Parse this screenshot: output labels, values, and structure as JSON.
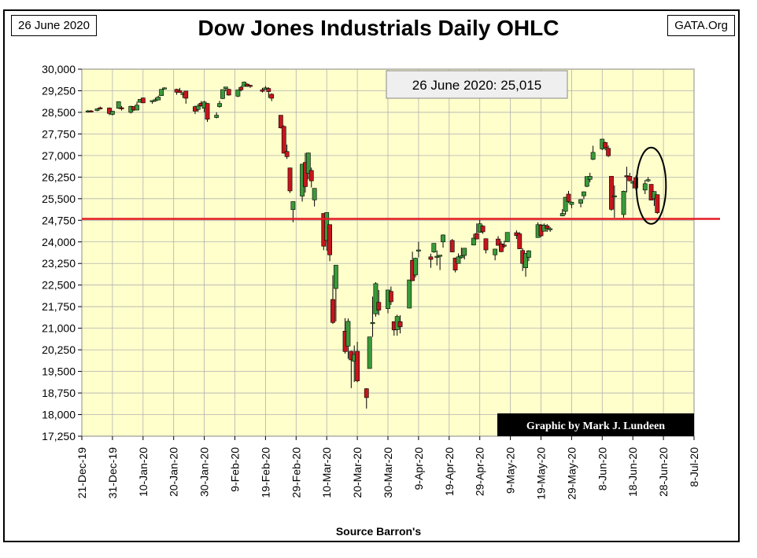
{
  "header": {
    "date_tag": "26 June 2020",
    "source_tag": "GATA.Org",
    "title": "Dow Jones Industrials Daily OHLC"
  },
  "annotations": {
    "close_box": "26 June 2020: 25,015",
    "credit": "Graphic by Mark J. Lundeen",
    "source": "Source Barron's"
  },
  "colors": {
    "plot_bg": "#ffffcc",
    "up": "#3a9a3a",
    "down": "#c4161c",
    "reference_line": "#e31b23"
  },
  "chart_data": {
    "type": "candlestick",
    "title": "Dow Jones Industrials Daily OHLC",
    "xlabel": "Source Barron's",
    "ylim": [
      17250,
      30000
    ],
    "y_ticks": [
      "30,000",
      "29,250",
      "28,500",
      "27,750",
      "27,000",
      "26,250",
      "25,500",
      "24,750",
      "24,000",
      "23,250",
      "22,500",
      "21,750",
      "21,000",
      "20,250",
      "19,500",
      "18,750",
      "18,000",
      "17,250"
    ],
    "x_ticks": [
      "21-Dec-19",
      "31-Dec-19",
      "10-Jan-20",
      "20-Jan-20",
      "30-Jan-20",
      "9-Feb-20",
      "19-Feb-20",
      "29-Feb-20",
      "10-Mar-20",
      "20-Mar-20",
      "30-Mar-20",
      "9-Apr-20",
      "19-Apr-20",
      "29-Apr-20",
      "9-May-20",
      "19-May-20",
      "29-May-20",
      "8-Jun-20",
      "18-Jun-20",
      "28-Jun-20",
      "8-Jul-20"
    ],
    "reference_line": 24800,
    "grid": true,
    "highlight_circle_dates": [
      "22-Jun-20",
      "26-Jun-20"
    ],
    "candles": [
      {
        "d": "23-Dec-19",
        "o": 28520,
        "h": 28580,
        "l": 28490,
        "c": 28550
      },
      {
        "d": "24-Dec-19",
        "o": 28550,
        "h": 28580,
        "l": 28520,
        "c": 28530
      },
      {
        "d": "26-Dec-19",
        "o": 28560,
        "h": 28640,
        "l": 28540,
        "c": 28620
      },
      {
        "d": "27-Dec-19",
        "o": 28660,
        "h": 28700,
        "l": 28600,
        "c": 28640
      },
      {
        "d": "30-Dec-19",
        "o": 28650,
        "h": 28670,
        "l": 28400,
        "c": 28460
      },
      {
        "d": "31-Dec-19",
        "o": 28430,
        "h": 28550,
        "l": 28390,
        "c": 28540
      },
      {
        "d": "2-Jan-20",
        "o": 28640,
        "h": 28880,
        "l": 28620,
        "c": 28870
      },
      {
        "d": "3-Jan-20",
        "o": 28660,
        "h": 28720,
        "l": 28560,
        "c": 28630
      },
      {
        "d": "6-Jan-20",
        "o": 28500,
        "h": 28730,
        "l": 28460,
        "c": 28710
      },
      {
        "d": "7-Jan-20",
        "o": 28700,
        "h": 28710,
        "l": 28550,
        "c": 28580
      },
      {
        "d": "8-Jan-20",
        "o": 28580,
        "h": 28870,
        "l": 28570,
        "c": 28750
      },
      {
        "d": "9-Jan-20",
        "o": 28850,
        "h": 28960,
        "l": 28840,
        "c": 28950
      },
      {
        "d": "10-Jan-20",
        "o": 29000,
        "h": 29010,
        "l": 28820,
        "c": 28830
      },
      {
        "d": "13-Jan-20",
        "o": 28870,
        "h": 28910,
        "l": 28800,
        "c": 28910
      },
      {
        "d": "14-Jan-20",
        "o": 28900,
        "h": 29010,
        "l": 28870,
        "c": 28940
      },
      {
        "d": "15-Jan-20",
        "o": 28930,
        "h": 29080,
        "l": 28920,
        "c": 29030
      },
      {
        "d": "16-Jan-20",
        "o": 29080,
        "h": 29300,
        "l": 29080,
        "c": 29300
      },
      {
        "d": "17-Jan-20",
        "o": 29310,
        "h": 29370,
        "l": 29290,
        "c": 29350
      },
      {
        "d": "21-Jan-20",
        "o": 29300,
        "h": 29320,
        "l": 29110,
        "c": 29200
      },
      {
        "d": "22-Jan-20",
        "o": 29250,
        "h": 29350,
        "l": 29180,
        "c": 29190
      },
      {
        "d": "23-Jan-20",
        "o": 29160,
        "h": 29200,
        "l": 29000,
        "c": 29160
      },
      {
        "d": "24-Jan-20",
        "o": 29240,
        "h": 29250,
        "l": 28800,
        "c": 28990
      },
      {
        "d": "27-Jan-20",
        "o": 28700,
        "h": 28730,
        "l": 28440,
        "c": 28540
      },
      {
        "d": "28-Jan-20",
        "o": 28600,
        "h": 28800,
        "l": 28520,
        "c": 28720
      },
      {
        "d": "29-Jan-20",
        "o": 28820,
        "h": 28890,
        "l": 28700,
        "c": 28730
      },
      {
        "d": "30-Jan-20",
        "o": 28640,
        "h": 28900,
        "l": 28500,
        "c": 28860
      },
      {
        "d": "31-Jan-20",
        "o": 28810,
        "h": 28820,
        "l": 28170,
        "c": 28260
      },
      {
        "d": "3-Feb-20",
        "o": 28320,
        "h": 28500,
        "l": 28290,
        "c": 28400
      },
      {
        "d": "4-Feb-20",
        "o": 28700,
        "h": 28900,
        "l": 28660,
        "c": 28810
      },
      {
        "d": "5-Feb-20",
        "o": 28980,
        "h": 29290,
        "l": 28960,
        "c": 29290
      },
      {
        "d": "6-Feb-20",
        "o": 29330,
        "h": 29380,
        "l": 29230,
        "c": 29380
      },
      {
        "d": "7-Feb-20",
        "o": 29300,
        "h": 29320,
        "l": 29080,
        "c": 29100
      },
      {
        "d": "10-Feb-20",
        "o": 29060,
        "h": 29280,
        "l": 29030,
        "c": 29280
      },
      {
        "d": "11-Feb-20",
        "o": 29370,
        "h": 29420,
        "l": 29230,
        "c": 29280
      },
      {
        "d": "12-Feb-20",
        "o": 29400,
        "h": 29570,
        "l": 29400,
        "c": 29550
      },
      {
        "d": "13-Feb-20",
        "o": 29480,
        "h": 29510,
        "l": 29380,
        "c": 29420
      },
      {
        "d": "14-Feb-20",
        "o": 29440,
        "h": 29460,
        "l": 29350,
        "c": 29400
      },
      {
        "d": "18-Feb-20",
        "o": 29280,
        "h": 29350,
        "l": 29190,
        "c": 29230
      },
      {
        "d": "19-Feb-20",
        "o": 29300,
        "h": 29410,
        "l": 29300,
        "c": 29350
      },
      {
        "d": "20-Feb-20",
        "o": 29330,
        "h": 29370,
        "l": 29000,
        "c": 29220
      },
      {
        "d": "21-Feb-20",
        "o": 29130,
        "h": 29160,
        "l": 28890,
        "c": 28990
      },
      {
        "d": "24-Feb-20",
        "o": 28400,
        "h": 28400,
        "l": 27940,
        "c": 27960
      },
      {
        "d": "25-Feb-20",
        "o": 28010,
        "h": 28050,
        "l": 27070,
        "c": 27080
      },
      {
        "d": "26-Feb-20",
        "o": 27140,
        "h": 27380,
        "l": 26880,
        "c": 26960
      },
      {
        "d": "27-Feb-20",
        "o": 26570,
        "h": 26570,
        "l": 25700,
        "c": 25770
      },
      {
        "d": "28-Feb-20",
        "o": 25120,
        "h": 25400,
        "l": 24680,
        "c": 25400
      },
      {
        "d": "2-Mar-20",
        "o": 25590,
        "h": 26710,
        "l": 25400,
        "c": 26700
      },
      {
        "d": "3-Mar-20",
        "o": 26760,
        "h": 27090,
        "l": 25710,
        "c": 25920
      },
      {
        "d": "4-Mar-20",
        "o": 26380,
        "h": 27100,
        "l": 26170,
        "c": 27090
      },
      {
        "d": "5-Mar-20",
        "o": 26480,
        "h": 26580,
        "l": 25890,
        "c": 26120
      },
      {
        "d": "6-Mar-20",
        "o": 25460,
        "h": 25860,
        "l": 25230,
        "c": 25860
      },
      {
        "d": "9-Mar-20",
        "o": 24990,
        "h": 24990,
        "l": 23710,
        "c": 23850
      },
      {
        "d": "10-Mar-20",
        "o": 24050,
        "h": 25020,
        "l": 23690,
        "c": 25020
      },
      {
        "d": "11-Mar-20",
        "o": 24600,
        "h": 24600,
        "l": 23330,
        "c": 23550
      },
      {
        "d": "12-Mar-20",
        "o": 22000,
        "h": 22840,
        "l": 21150,
        "c": 21200
      },
      {
        "d": "13-Mar-20",
        "o": 22380,
        "h": 23190,
        "l": 21240,
        "c": 23190
      },
      {
        "d": "16-Mar-20",
        "o": 20900,
        "h": 21350,
        "l": 20120,
        "c": 20190
      },
      {
        "d": "17-Mar-20",
        "o": 20380,
        "h": 21340,
        "l": 19940,
        "c": 21240
      },
      {
        "d": "18-Mar-20",
        "o": 20200,
        "h": 20220,
        "l": 18920,
        "c": 19900
      },
      {
        "d": "19-Mar-20",
        "o": 19850,
        "h": 20400,
        "l": 19130,
        "c": 20090
      },
      {
        "d": "20-Mar-20",
        "o": 20200,
        "h": 20530,
        "l": 19120,
        "c": 19170
      },
      {
        "d": "23-Mar-20",
        "o": 18900,
        "h": 18920,
        "l": 18210,
        "c": 18590
      },
      {
        "d": "24-Mar-20",
        "o": 19600,
        "h": 20670,
        "l": 19600,
        "c": 20700
      },
      {
        "d": "25-Mar-20",
        "o": 21200,
        "h": 22100,
        "l": 20700,
        "c": 21200
      },
      {
        "d": "26-Mar-20",
        "o": 21500,
        "h": 22600,
        "l": 21400,
        "c": 22550
      },
      {
        "d": "27-Mar-20",
        "o": 21900,
        "h": 22330,
        "l": 21450,
        "c": 21630
      },
      {
        "d": "30-Mar-20",
        "o": 21680,
        "h": 22300,
        "l": 21520,
        "c": 22330
      },
      {
        "d": "31-Mar-20",
        "o": 22280,
        "h": 22450,
        "l": 21810,
        "c": 21920
      },
      {
        "d": "1-Apr-20",
        "o": 21230,
        "h": 21230,
        "l": 20740,
        "c": 20940
      },
      {
        "d": "2-Apr-20",
        "o": 20950,
        "h": 21470,
        "l": 20740,
        "c": 21410
      },
      {
        "d": "3-Apr-20",
        "o": 21230,
        "h": 21450,
        "l": 20820,
        "c": 21050
      },
      {
        "d": "6-Apr-20",
        "o": 21700,
        "h": 22680,
        "l": 21690,
        "c": 22680
      },
      {
        "d": "7-Apr-20",
        "o": 23360,
        "h": 23660,
        "l": 22640,
        "c": 22650
      },
      {
        "d": "8-Apr-20",
        "o": 22850,
        "h": 23450,
        "l": 22760,
        "c": 23430
      },
      {
        "d": "9-Apr-20",
        "o": 23700,
        "h": 24000,
        "l": 23460,
        "c": 23720
      },
      {
        "d": "13-Apr-20",
        "o": 23480,
        "h": 23590,
        "l": 23100,
        "c": 23390
      },
      {
        "d": "14-Apr-20",
        "o": 23650,
        "h": 23950,
        "l": 23620,
        "c": 23950
      },
      {
        "d": "15-Apr-20",
        "o": 23500,
        "h": 23700,
        "l": 23180,
        "c": 23500
      },
      {
        "d": "16-Apr-20",
        "o": 23530,
        "h": 23540,
        "l": 23020,
        "c": 23540
      },
      {
        "d": "17-Apr-20",
        "o": 24000,
        "h": 24260,
        "l": 23800,
        "c": 24240
      },
      {
        "d": "20-Apr-20",
        "o": 24050,
        "h": 24100,
        "l": 23640,
        "c": 23650
      },
      {
        "d": "21-Apr-20",
        "o": 23440,
        "h": 23440,
        "l": 22940,
        "c": 23020
      },
      {
        "d": "22-Apr-20",
        "o": 23250,
        "h": 23600,
        "l": 23250,
        "c": 23480
      },
      {
        "d": "23-Apr-20",
        "o": 23450,
        "h": 23800,
        "l": 23420,
        "c": 23520
      },
      {
        "d": "24-Apr-20",
        "o": 23530,
        "h": 23780,
        "l": 23390,
        "c": 23780
      },
      {
        "d": "27-Apr-20",
        "o": 23890,
        "h": 24280,
        "l": 23880,
        "c": 24130
      },
      {
        "d": "28-Apr-20",
        "o": 24290,
        "h": 24640,
        "l": 24090,
        "c": 24100
      },
      {
        "d": "29-Apr-20",
        "o": 24330,
        "h": 24770,
        "l": 24330,
        "c": 24630
      },
      {
        "d": "30-Apr-20",
        "o": 24550,
        "h": 24580,
        "l": 24280,
        "c": 24350
      },
      {
        "d": "1-May-20",
        "o": 24110,
        "h": 24120,
        "l": 23600,
        "c": 23720
      },
      {
        "d": "4-May-20",
        "o": 23550,
        "h": 23760,
        "l": 23360,
        "c": 23750
      },
      {
        "d": "5-May-20",
        "o": 24100,
        "h": 24200,
        "l": 23870,
        "c": 23880
      },
      {
        "d": "6-May-20",
        "o": 23930,
        "h": 24030,
        "l": 23640,
        "c": 23660
      },
      {
        "d": "7-May-20",
        "o": 23890,
        "h": 24040,
        "l": 23780,
        "c": 23880
      },
      {
        "d": "8-May-20",
        "o": 24000,
        "h": 24330,
        "l": 24000,
        "c": 24330
      },
      {
        "d": "11-May-20",
        "o": 24320,
        "h": 24400,
        "l": 24100,
        "c": 24220
      },
      {
        "d": "12-May-20",
        "o": 24280,
        "h": 24340,
        "l": 23750,
        "c": 23760
      },
      {
        "d": "13-May-20",
        "o": 23700,
        "h": 23780,
        "l": 22990,
        "c": 23250
      },
      {
        "d": "14-May-20",
        "o": 23100,
        "h": 23600,
        "l": 22790,
        "c": 23600
      },
      {
        "d": "15-May-20",
        "o": 23460,
        "h": 23710,
        "l": 23330,
        "c": 23690
      },
      {
        "d": "18-May-20",
        "o": 24150,
        "h": 24680,
        "l": 24150,
        "c": 24600
      },
      {
        "d": "19-May-20",
        "o": 24590,
        "h": 24620,
        "l": 24170,
        "c": 24210
      },
      {
        "d": "20-May-20",
        "o": 24370,
        "h": 24640,
        "l": 24370,
        "c": 24580
      },
      {
        "d": "21-May-20",
        "o": 24560,
        "h": 24620,
        "l": 24350,
        "c": 24470
      },
      {
        "d": "22-May-20",
        "o": 24460,
        "h": 24520,
        "l": 24350,
        "c": 24460
      },
      {
        "d": "26-May-20",
        "o": 24900,
        "h": 25140,
        "l": 24900,
        "c": 24990
      },
      {
        "d": "27-May-20",
        "o": 25060,
        "h": 25560,
        "l": 24940,
        "c": 25550
      },
      {
        "d": "28-May-20",
        "o": 25660,
        "h": 25770,
        "l": 25350,
        "c": 25400
      },
      {
        "d": "29-May-20",
        "o": 25300,
        "h": 25400,
        "l": 25170,
        "c": 25380
      },
      {
        "d": "1-Jun-20",
        "o": 25340,
        "h": 25480,
        "l": 25200,
        "c": 25470
      },
      {
        "d": "2-Jun-20",
        "o": 25600,
        "h": 25750,
        "l": 25480,
        "c": 25740
      },
      {
        "d": "3-Jun-20",
        "o": 25930,
        "h": 26260,
        "l": 25900,
        "c": 26270
      },
      {
        "d": "4-Jun-20",
        "o": 26170,
        "h": 26400,
        "l": 26070,
        "c": 26280
      },
      {
        "d": "5-Jun-20",
        "o": 26870,
        "h": 27340,
        "l": 26840,
        "c": 27110
      },
      {
        "d": "8-Jun-20",
        "o": 27230,
        "h": 27580,
        "l": 27190,
        "c": 27570
      },
      {
        "d": "9-Jun-20",
        "o": 27450,
        "h": 27480,
        "l": 27180,
        "c": 27270
      },
      {
        "d": "10-Jun-20",
        "o": 27250,
        "h": 27350,
        "l": 26950,
        "c": 26990
      },
      {
        "d": "11-Jun-20",
        "o": 26280,
        "h": 26280,
        "l": 25080,
        "c": 25130
      },
      {
        "d": "12-Jun-20",
        "o": 25590,
        "h": 25960,
        "l": 24840,
        "c": 25600
      },
      {
        "d": "15-Jun-20",
        "o": 24950,
        "h": 25780,
        "l": 24840,
        "c": 25760
      },
      {
        "d": "16-Jun-20",
        "o": 26300,
        "h": 26610,
        "l": 25720,
        "c": 26290
      },
      {
        "d": "17-Jun-20",
        "o": 26280,
        "h": 26400,
        "l": 26100,
        "c": 26120
      },
      {
        "d": "18-Jun-20",
        "o": 26050,
        "h": 26130,
        "l": 25850,
        "c": 26080
      },
      {
        "d": "19-Jun-20",
        "o": 26230,
        "h": 26300,
        "l": 25800,
        "c": 25870
      },
      {
        "d": "22-Jun-20",
        "o": 25800,
        "h": 26150,
        "l": 25660,
        "c": 26020
      },
      {
        "d": "23-Jun-20",
        "o": 26150,
        "h": 26250,
        "l": 26080,
        "c": 26160
      },
      {
        "d": "24-Jun-20",
        "o": 26000,
        "h": 26000,
        "l": 25460,
        "c": 25450
      },
      {
        "d": "25-Jun-20",
        "o": 25500,
        "h": 25760,
        "l": 25250,
        "c": 25750
      },
      {
        "d": "26-Jun-20",
        "o": 25640,
        "h": 25650,
        "l": 24970,
        "c": 25015
      }
    ]
  }
}
